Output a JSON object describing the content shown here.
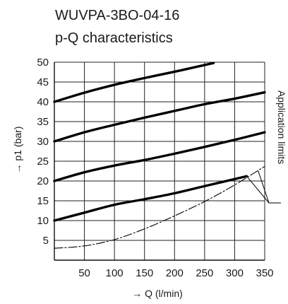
{
  "chart_data": {
    "type": "line",
    "title": "WUVPA-3BO-04-16",
    "subtitle": "p-Q characteristics",
    "xlabel": "→ Q (l/min)",
    "ylabel": "→ p1 (bar)",
    "xlim": [
      0,
      350
    ],
    "ylim": [
      0,
      50
    ],
    "x_ticks": [
      50,
      100,
      150,
      200,
      250,
      300,
      350
    ],
    "y_ticks": [
      5,
      10,
      15,
      20,
      25,
      30,
      35,
      40,
      45,
      50
    ],
    "grid": true,
    "series": [
      {
        "style": "solid",
        "x": [
          0,
          50,
          100,
          150,
          200,
          250,
          320
        ],
        "y": [
          10,
          12,
          14,
          15.4,
          16.9,
          18.7,
          21.2
        ]
      },
      {
        "style": "solid",
        "x": [
          0,
          50,
          100,
          150,
          200,
          250,
          300,
          350
        ],
        "y": [
          20,
          22.2,
          23.9,
          25.3,
          26.9,
          28.6,
          30.4,
          32.3
        ]
      },
      {
        "style": "solid",
        "x": [
          0,
          50,
          100,
          150,
          200,
          250,
          300,
          350
        ],
        "y": [
          30,
          32.3,
          34.2,
          36,
          37.7,
          39.4,
          40.8,
          42.4
        ]
      },
      {
        "style": "solid",
        "x": [
          0,
          50,
          100,
          150,
          200,
          265
        ],
        "y": [
          40,
          42.3,
          44.3,
          46,
          47.6,
          49.8
        ]
      },
      {
        "style": "dash-dot",
        "x": [
          0,
          50,
          100,
          150,
          200,
          250,
          300,
          350
        ],
        "y": [
          3,
          3.6,
          5.2,
          7.9,
          11.2,
          14.8,
          19,
          23.7
        ]
      }
    ],
    "annotation": {
      "text": "Application limits",
      "targets": [
        {
          "x": 320,
          "y": 21.2
        },
        {
          "x": 339,
          "y": 22.6
        }
      ]
    }
  }
}
